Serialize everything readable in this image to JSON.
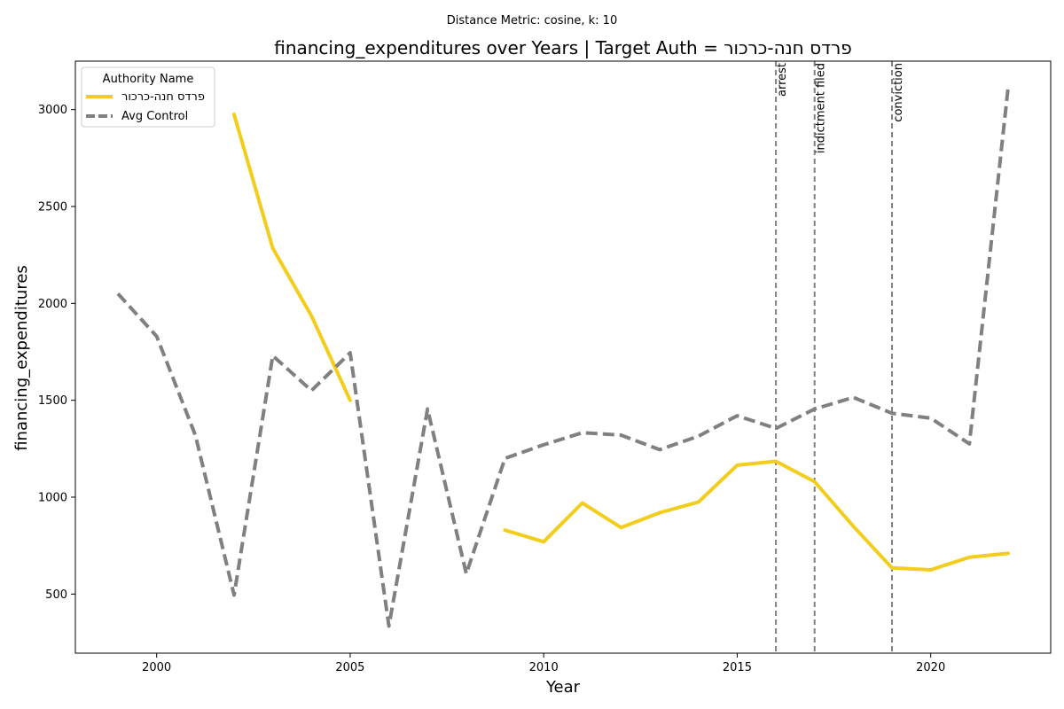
{
  "chart_data": {
    "type": "line",
    "suptitle": "Distance Metric: cosine, k: 10",
    "title": "financing_expenditures over Years | Target Auth = פרדס חנה-כרכור",
    "xlabel": "Year",
    "ylabel": "financing_expenditures",
    "xlim": [
      1997.9,
      2023.1
    ],
    "ylim": [
      195,
      3250
    ],
    "xticks": [
      2000,
      2005,
      2010,
      2015,
      2020
    ],
    "yticks": [
      500,
      1000,
      1500,
      2000,
      2500,
      3000
    ],
    "grid": false,
    "legend": {
      "title": "Authority Name",
      "position": "upper left"
    },
    "series": [
      {
        "name": "פרדס חנה-כרכור",
        "color": "#f2cd1b",
        "dash": "solid",
        "segments": [
          {
            "x": [
              2002,
              2003,
              2004,
              2005
            ],
            "y": [
              2975,
              2285,
              1935,
              1500
            ]
          },
          {
            "x": [
              2009,
              2010,
              2011,
              2012,
              2013,
              2014,
              2015,
              2016,
              2017,
              2018,
              2019,
              2020,
              2021,
              2022
            ],
            "y": [
              830,
              770,
              970,
              843,
              920,
              975,
              1165,
              1185,
              1080,
              850,
              635,
              625,
              690,
              710
            ]
          }
        ]
      },
      {
        "name": "Avg Control",
        "color": "#808080",
        "dash": "dashed",
        "segments": [
          {
            "x": [
              1999,
              2000,
              2001,
              2002,
              2003,
              2004,
              2005,
              2006,
              2007,
              2008,
              2009,
              2010,
              2011,
              2012,
              2013,
              2014,
              2015,
              2016,
              2017,
              2018,
              2019,
              2020,
              2021,
              2022
            ],
            "y": [
              2050,
              1830,
              1320,
              495,
              1730,
              1550,
              1745,
              335,
              1455,
              605,
              1200,
              1270,
              1333,
              1320,
              1245,
              1315,
              1420,
              1355,
              1455,
              1515,
              1433,
              1408,
              1275,
              3115
            ]
          }
        ]
      }
    ],
    "events": [
      {
        "x": 2016,
        "label": "arrest"
      },
      {
        "x": 2017,
        "label": "indictment filed"
      },
      {
        "x": 2019,
        "label": "conviction"
      }
    ]
  }
}
